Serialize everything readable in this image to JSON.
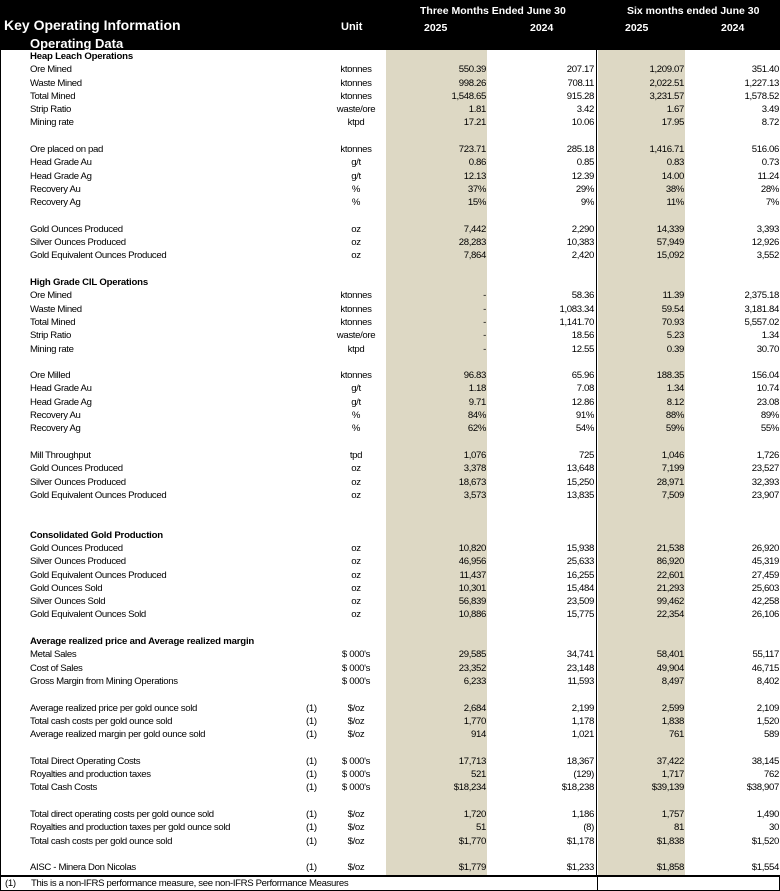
{
  "header": {
    "title": "Key Operating Information",
    "subtitle": "Operating Data",
    "unit_label": "Unit",
    "period_three": "Three Months Ended June 30",
    "period_six": "Six months ended June 30",
    "years": [
      "2025",
      "2024",
      "2025",
      "2024"
    ]
  },
  "colors": {
    "header_bg": "#000000",
    "shaded_column": "#ddd8c4"
  },
  "groups": [
    {
      "heading": "Heap Leach Operations",
      "rows": [
        {
          "label": "Ore Mined",
          "note": "",
          "unit": "ktonnes",
          "values": [
            "550.39",
            "207.17",
            "1,209.07",
            "351.40"
          ]
        },
        {
          "label": "Waste Mined",
          "note": "",
          "unit": "ktonnes",
          "values": [
            "998.26",
            "708.11",
            "2,022.51",
            "1,227.13"
          ]
        },
        {
          "label": "Total Mined",
          "note": "",
          "unit": "ktonnes",
          "values": [
            "1,548.65",
            "915.28",
            "3,231.57",
            "1,578.52"
          ]
        },
        {
          "label": "Strip Ratio",
          "note": "",
          "unit": "waste/ore",
          "values": [
            "1.81",
            "3.42",
            "1.67",
            "3.49"
          ]
        },
        {
          "label": "Mining rate",
          "note": "",
          "unit": "ktpd",
          "values": [
            "17.21",
            "10.06",
            "17.95",
            "8.72"
          ]
        }
      ]
    },
    {
      "heading": "",
      "rows": [
        {
          "label": "Ore placed on pad",
          "note": "",
          "unit": "ktonnes",
          "values": [
            "723.71",
            "285.18",
            "1,416.71",
            "516.06"
          ]
        },
        {
          "label": "Head Grade Au",
          "note": "",
          "unit": "g/t",
          "values": [
            "0.86",
            "0.85",
            "0.83",
            "0.73"
          ]
        },
        {
          "label": "Head Grade Ag",
          "note": "",
          "unit": "g/t",
          "values": [
            "12.13",
            "12.39",
            "14.00",
            "11.24"
          ]
        },
        {
          "label": "Recovery Au",
          "note": "",
          "unit": "%",
          "values": [
            "37%",
            "29%",
            "38%",
            "28%"
          ]
        },
        {
          "label": "Recovery Ag",
          "note": "",
          "unit": "%",
          "values": [
            "15%",
            "9%",
            "11%",
            "7%"
          ]
        }
      ]
    },
    {
      "heading": "",
      "rows": [
        {
          "label": "Gold Ounces Produced",
          "note": "",
          "unit": "oz",
          "values": [
            "7,442",
            "2,290",
            "14,339",
            "3,393"
          ]
        },
        {
          "label": "Silver Ounces Produced",
          "note": "",
          "unit": "oz",
          "values": [
            "28,283",
            "10,383",
            "57,949",
            "12,926"
          ]
        },
        {
          "label": "Gold Equivalent Ounces Produced",
          "note": "",
          "unit": "oz",
          "values": [
            "7,864",
            "2,420",
            "15,092",
            "3,552"
          ]
        }
      ]
    },
    {
      "heading": "High Grade CIL Operations",
      "rows": [
        {
          "label": "Ore Mined",
          "note": "",
          "unit": "ktonnes",
          "values": [
            "-",
            "58.36",
            "11.39",
            "2,375.18"
          ]
        },
        {
          "label": "Waste Mined",
          "note": "",
          "unit": "ktonnes",
          "values": [
            "-",
            "1,083.34",
            "59.54",
            "3,181.84"
          ]
        },
        {
          "label": "Total Mined",
          "note": "",
          "unit": "ktonnes",
          "values": [
            "-",
            "1,141.70",
            "70.93",
            "5,557.02"
          ]
        },
        {
          "label": "Strip Ratio",
          "note": "",
          "unit": "waste/ore",
          "values": [
            "-",
            "18.56",
            "5.23",
            "1.34"
          ]
        },
        {
          "label": "Mining rate",
          "note": "",
          "unit": "ktpd",
          "values": [
            "-",
            "12.55",
            "0.39",
            "30.70"
          ]
        }
      ]
    },
    {
      "heading": "",
      "rows": [
        {
          "label": "Ore Milled",
          "note": "",
          "unit": "ktonnes",
          "values": [
            "96.83",
            "65.96",
            "188.35",
            "156.04"
          ]
        },
        {
          "label": "Head Grade Au",
          "note": "",
          "unit": "g/t",
          "values": [
            "1.18",
            "7.08",
            "1.34",
            "10.74"
          ]
        },
        {
          "label": "Head Grade Ag",
          "note": "",
          "unit": "g/t",
          "values": [
            "9.71",
            "12.86",
            "8.12",
            "23.08"
          ]
        },
        {
          "label": "Recovery Au",
          "note": "",
          "unit": "%",
          "values": [
            "84%",
            "91%",
            "88%",
            "89%"
          ]
        },
        {
          "label": "Recovery Ag",
          "note": "",
          "unit": "%",
          "values": [
            "62%",
            "54%",
            "59%",
            "55%"
          ]
        }
      ]
    },
    {
      "heading": "",
      "rows": [
        {
          "label": "Mill Throughput",
          "note": "",
          "unit": "tpd",
          "values": [
            "1,076",
            "725",
            "1,046",
            "1,726"
          ]
        },
        {
          "label": "Gold Ounces Produced",
          "note": "",
          "unit": "oz",
          "values": [
            "3,378",
            "13,648",
            "7,199",
            "23,527"
          ]
        },
        {
          "label": "Silver Ounces Produced",
          "note": "",
          "unit": "oz",
          "values": [
            "18,673",
            "15,250",
            "28,971",
            "32,393"
          ]
        },
        {
          "label": "Gold Equivalent Ounces Produced",
          "note": "",
          "unit": "oz",
          "values": [
            "3,573",
            "13,835",
            "7,509",
            "23,907"
          ]
        }
      ]
    },
    {
      "heading": "Consolidated Gold Production",
      "rows": [
        {
          "label": "Gold Ounces Produced",
          "note": "",
          "unit": "oz",
          "values": [
            "10,820",
            "15,938",
            "21,538",
            "26,920"
          ]
        },
        {
          "label": "Silver Ounces Produced",
          "note": "",
          "unit": "oz",
          "values": [
            "46,956",
            "25,633",
            "86,920",
            "45,319"
          ]
        },
        {
          "label": "Gold Equivalent Ounces Produced",
          "note": "",
          "unit": "oz",
          "values": [
            "11,437",
            "16,255",
            "22,601",
            "27,459"
          ]
        },
        {
          "label": "Gold Ounces Sold",
          "note": "",
          "unit": "oz",
          "values": [
            "10,301",
            "15,484",
            "21,293",
            "25,603"
          ]
        },
        {
          "label": "Silver Ounces Sold",
          "note": "",
          "unit": "oz",
          "values": [
            "56,839",
            "23,509",
            "99,462",
            "42,258"
          ]
        },
        {
          "label": "Gold Equivalent Ounces Sold",
          "note": "",
          "unit": "oz",
          "values": [
            "10,886",
            "15,775",
            "22,354",
            "26,106"
          ]
        }
      ]
    },
    {
      "heading": "Average realized price and Average realized margin",
      "rows": [
        {
          "label": "Metal Sales",
          "note": "",
          "unit": "$ 000's",
          "values": [
            "29,585",
            "34,741",
            "58,401",
            "55,117"
          ]
        },
        {
          "label": "Cost of Sales",
          "note": "",
          "unit": "$ 000's",
          "values": [
            "23,352",
            "23,148",
            "49,904",
            "46,715"
          ]
        },
        {
          "label": "Gross Margin from Mining Operations",
          "note": "",
          "unit": "$ 000's",
          "values": [
            "6,233",
            "11,593",
            "8,497",
            "8,402"
          ]
        }
      ]
    },
    {
      "heading": "",
      "rows": [
        {
          "label": "Average realized price per gold ounce sold",
          "note": "(1)",
          "unit": "$/oz",
          "values": [
            "2,684",
            "2,199",
            "2,599",
            "2,109"
          ]
        },
        {
          "label": "Total cash costs per gold ounce sold",
          "note": "(1)",
          "unit": "$/oz",
          "values": [
            "1,770",
            "1,178",
            "1,838",
            "1,520"
          ]
        },
        {
          "label": "Average realized margin per gold ounce sold",
          "note": "(1)",
          "unit": "$/oz",
          "values": [
            "914",
            "1,021",
            "761",
            "589"
          ]
        }
      ]
    },
    {
      "heading": "",
      "rows": [
        {
          "label": "Total Direct Operating Costs",
          "note": "(1)",
          "unit": "$ 000's",
          "values": [
            "17,713",
            "18,367",
            "37,422",
            "38,145"
          ]
        },
        {
          "label": "Royalties and production taxes",
          "note": "(1)",
          "unit": "$ 000's",
          "values": [
            "521",
            "(129)",
            "1,717",
            "762"
          ]
        },
        {
          "label": "Total Cash Costs",
          "note": "(1)",
          "unit": "$ 000's",
          "values": [
            "$18,234",
            "$18,238",
            "$39,139",
            "$38,907"
          ]
        }
      ]
    },
    {
      "heading": "",
      "rows": [
        {
          "label": "Total direct operating costs per gold ounce sold",
          "note": "(1)",
          "unit": "$/oz",
          "values": [
            "1,720",
            "1,186",
            "1,757",
            "1,490"
          ]
        },
        {
          "label": "Royalties and production taxes per gold ounce sold",
          "note": "(1)",
          "unit": "$/oz",
          "values": [
            "51",
            "(8)",
            "81",
            "30"
          ]
        },
        {
          "label": "Total cash costs per gold ounce sold",
          "note": "(1)",
          "unit": "$/oz",
          "values": [
            "$1,770",
            "$1,178",
            "$1,838",
            "$1,520"
          ]
        }
      ]
    },
    {
      "heading": "",
      "rows": [
        {
          "label": "AISC - Minera Don Nicolas",
          "note": "(1)",
          "unit": "$/oz",
          "values": [
            "$1,779",
            "$1,233",
            "$1,858",
            "$1,554"
          ]
        }
      ]
    }
  ],
  "footnote": {
    "marker": "(1)",
    "text": "This is a non-IFRS performance measure, see non-IFRS Performance Measures"
  }
}
